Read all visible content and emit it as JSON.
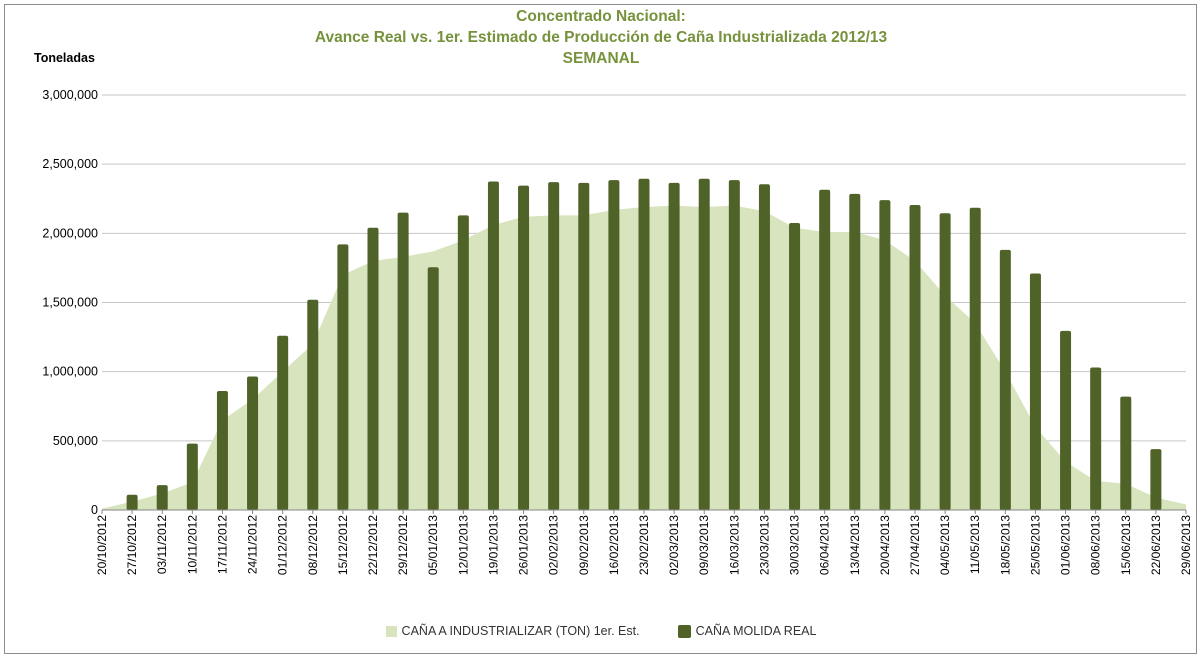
{
  "chart_data": {
    "type": "bar",
    "title": [
      "Concentrado Nacional:",
      "Avance Real vs. 1er. Estimado de Producción de Caña Industrializada 2012/13",
      "SEMANAL"
    ],
    "ylabel": "Toneladas",
    "ylim": [
      0,
      3000000
    ],
    "yticks": [
      "0",
      "500,000",
      "1,000,000",
      "1,500,000",
      "2,000,000",
      "2,500,000",
      "3,000,000"
    ],
    "grid": true,
    "legend_position": "bottom",
    "categories": [
      "20/10/2012",
      "27/10/2012",
      "03/11/2012",
      "10/11/2012",
      "17/11/2012",
      "24/11/2012",
      "01/12/2012",
      "08/12/2012",
      "15/12/2012",
      "22/12/2012",
      "29/12/2012",
      "05/01/2013",
      "12/01/2013",
      "19/01/2013",
      "26/01/2013",
      "02/02/2013",
      "09/02/2013",
      "16/02/2013",
      "23/02/2013",
      "02/03/2013",
      "09/03/2013",
      "16/03/2013",
      "23/03/2013",
      "30/03/2013",
      "06/04/2013",
      "13/04/2013",
      "20/04/2013",
      "27/04/2013",
      "04/05/2013",
      "11/05/2013",
      "18/05/2013",
      "25/05/2013",
      "01/06/2013",
      "08/06/2013",
      "15/06/2013",
      "22/06/2013",
      "29/06/2013"
    ],
    "series": [
      {
        "name": "CAÑA A INDUSTRIALIZAR (TON) 1er. Est.",
        "type": "area",
        "color": "#d7e4bd",
        "values": [
          10000,
          60000,
          120000,
          200000,
          650000,
          800000,
          1000000,
          1200000,
          1700000,
          1800000,
          1830000,
          1870000,
          1950000,
          2060000,
          2120000,
          2130000,
          2130000,
          2170000,
          2190000,
          2200000,
          2190000,
          2200000,
          2160000,
          2040000,
          2010000,
          2010000,
          1950000,
          1800000,
          1550000,
          1350000,
          1000000,
          600000,
          350000,
          210000,
          190000,
          90000,
          40000
        ]
      },
      {
        "name": "CAÑA MOLIDA REAL",
        "type": "bar",
        "color": "#4f6228",
        "values": [
          null,
          110000,
          180000,
          480000,
          860000,
          965000,
          1260000,
          1520000,
          1920000,
          2040000,
          2150000,
          1755000,
          2130000,
          2375000,
          2345000,
          2370000,
          2365000,
          2385000,
          2395000,
          2365000,
          2395000,
          2385000,
          2355000,
          2075000,
          2315000,
          2285000,
          2240000,
          2205000,
          2145000,
          2185000,
          1880000,
          1710000,
          1295000,
          1030000,
          820000,
          440000,
          null
        ]
      }
    ]
  }
}
